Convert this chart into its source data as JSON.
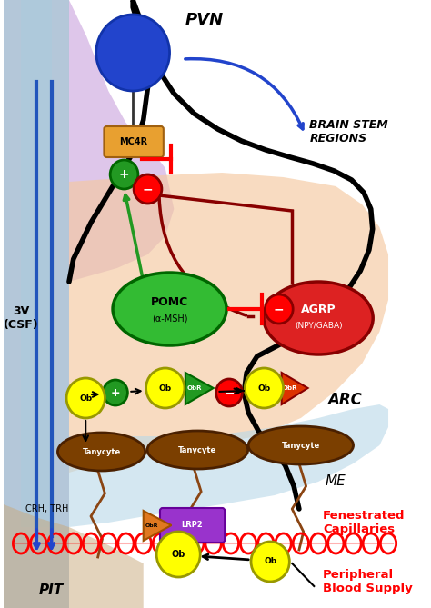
{
  "fig_width": 4.74,
  "fig_height": 6.69,
  "bg_color": "white",
  "pvn_label": "PVN",
  "arc_label": "ARC",
  "me_label": "ME",
  "3v_label": "3V\n(CSF)",
  "brain_stem_label": "BRAIN STEM\nREGIONS",
  "pomc_label1": "POMC",
  "pomc_label2": "(α-MSH)",
  "agrp_label1": "AGRP",
  "agrp_label2": "(NPY/GABA)",
  "mc4r_label": "MC4R",
  "ob_label": "Ob",
  "obr_label": "ObR",
  "lrp2_label": "LRP2",
  "tanycyte_label": "Tanycyte",
  "crh_trh_label": "CRH, TRH",
  "pit_label": "PIT",
  "fenestrated_label": "Fenestrated\nCapillaries",
  "peripheral_label": "Peripheral\nBlood Supply",
  "plus_label": "+",
  "minus_label": "−"
}
